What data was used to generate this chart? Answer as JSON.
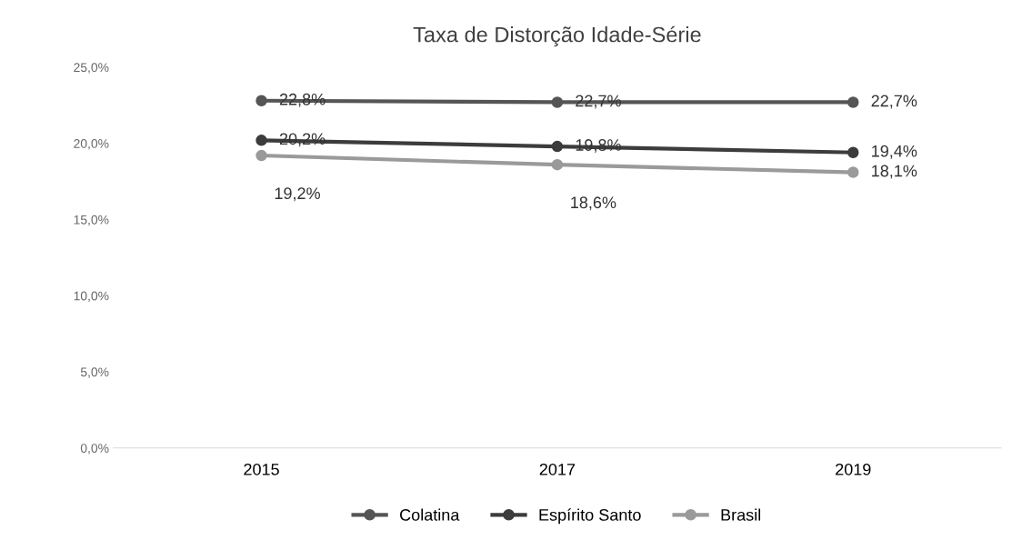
{
  "chart_data": {
    "type": "line",
    "title": "Taxa de Distorção Idade-Série",
    "categories": [
      "2015",
      "2017",
      "2019"
    ],
    "series": [
      {
        "name": "Colatina",
        "color": "#555555",
        "values": [
          22.8,
          22.7,
          22.7
        ],
        "value_labels": [
          "22,8%",
          "22,7%",
          "22,7%"
        ]
      },
      {
        "name": "Espírito Santo",
        "color": "#3c3c3c",
        "values": [
          20.2,
          19.8,
          19.4
        ],
        "value_labels": [
          "20,2%",
          "19,8%",
          "19,4%"
        ]
      },
      {
        "name": "Brasil",
        "color": "#9a9a9a",
        "values": [
          19.2,
          18.6,
          18.1
        ],
        "value_labels": [
          "19,2%",
          "18,6%",
          "18,1%"
        ]
      }
    ],
    "ylim": [
      0,
      25
    ],
    "yticks": [
      {
        "value": 0,
        "label": "0,0%"
      },
      {
        "value": 5,
        "label": "5,0%"
      },
      {
        "value": 10,
        "label": "10,0%"
      },
      {
        "value": 15,
        "label": "15,0%"
      },
      {
        "value": 20,
        "label": "20,0%"
      },
      {
        "value": 25,
        "label": "25,0%"
      }
    ],
    "grid": false,
    "legend": "bottom",
    "marker": "circle",
    "line_style": "solid"
  }
}
